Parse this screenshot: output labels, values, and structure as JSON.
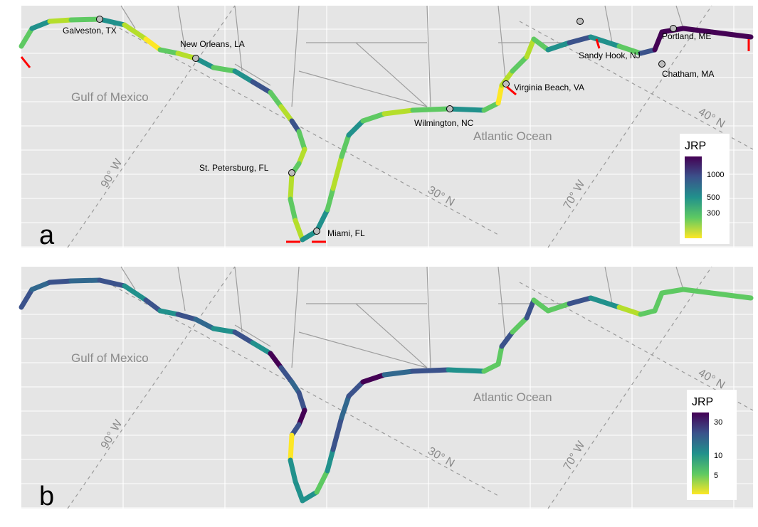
{
  "panels": [
    {
      "letter": "a",
      "legend": {
        "title": "JRP",
        "ticks": [
          "1000",
          "500",
          "300"
        ]
      },
      "cities": [
        "Galveston, TX",
        "New Orleans, LA",
        "St. Petersburg, FL",
        "Miami, FL",
        "Wilmington, NC",
        "Virginia Beach, VA",
        "Sandy Hook, NJ",
        "Chatham, MA",
        "Portland, ME"
      ],
      "seas": [
        "Gulf of Mexico",
        "Atlantic Ocean"
      ],
      "graticule": [
        "90° W",
        "70° W",
        "30° N",
        "40° N"
      ]
    },
    {
      "letter": "b",
      "legend": {
        "title": "JRP",
        "ticks": [
          "30",
          "10",
          "5"
        ]
      },
      "seas": [
        "Gulf of Mexico",
        "Atlantic Ocean"
      ],
      "graticule": [
        "90° W",
        "70° W",
        "30° N",
        "40° N"
      ]
    }
  ],
  "colors": {
    "panel_bg": "#e5e5e5",
    "scale": [
      "#fde725",
      "#5ec962",
      "#21918c",
      "#3b528b",
      "#440154"
    ],
    "break_marker": "#ff0000"
  }
}
